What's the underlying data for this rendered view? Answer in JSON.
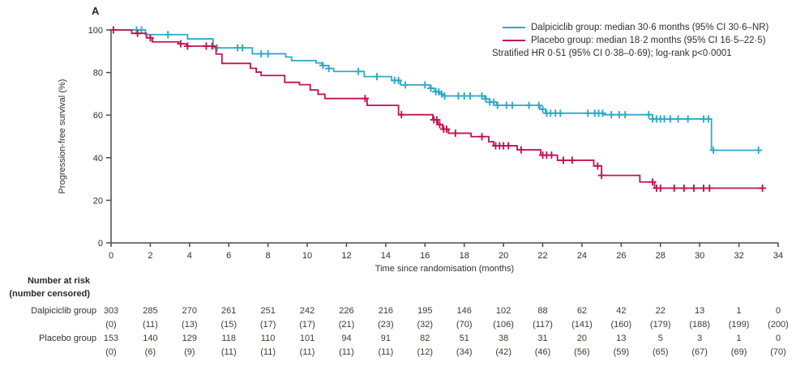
{
  "figure": {
    "panel_label": "A"
  },
  "legend": {
    "entries": [
      {
        "label": "Dalpiciclib group: median 30·6 months (95% CI 30·6–NR)",
        "color": "#2fa9c9"
      },
      {
        "label": "Placebo group: median 18·2 months (95% CI 16·5–22·5)",
        "color": "#c01351"
      }
    ],
    "note": "Stratified HR 0·51 (95% CI 0·38–0·69); log-rank p<0·0001"
  },
  "chart_data": {
    "type": "line",
    "subtype": "kaplan-meier-step",
    "xlabel": "Time since randomisation (months)",
    "ylabel": "Progression-free survival (%)",
    "xlim": [
      0,
      34
    ],
    "ylim": [
      0,
      100
    ],
    "xticks": [
      0,
      2,
      4,
      6,
      8,
      10,
      12,
      14,
      16,
      18,
      20,
      22,
      24,
      26,
      28,
      30,
      32,
      34
    ],
    "yticks": [
      0,
      20,
      40,
      60,
      80,
      100
    ],
    "grid": false,
    "legend_position": "top-right",
    "axis_color": "#4d4b49",
    "series": [
      {
        "name": "Dalpiciclib group",
        "color": "#2fa9c9",
        "end_month": 33.05,
        "steps": [
          [
            0,
            100
          ],
          [
            1.75,
            97.8
          ],
          [
            3.9,
            95.8
          ],
          [
            5.2,
            91.6
          ],
          [
            7.2,
            88.8
          ],
          [
            8.9,
            87.3
          ],
          [
            9.2,
            85.6
          ],
          [
            10.45,
            84.5
          ],
          [
            10.75,
            83.3
          ],
          [
            11.1,
            81.9
          ],
          [
            11.35,
            80.5
          ],
          [
            12.9,
            78.1
          ],
          [
            14.3,
            76.3
          ],
          [
            14.75,
            74.2
          ],
          [
            16.25,
            72.6
          ],
          [
            16.5,
            71.0
          ],
          [
            16.75,
            69.9
          ],
          [
            16.95,
            69.0
          ],
          [
            19.05,
            67.6
          ],
          [
            19.3,
            66.1
          ],
          [
            19.65,
            64.6
          ],
          [
            21.85,
            62.8
          ],
          [
            22.15,
            60.9
          ],
          [
            25.1,
            60.2
          ],
          [
            27.6,
            58.2
          ],
          [
            30.6,
            43.5
          ]
        ],
        "censor_months": [
          1.3,
          1.55,
          2.9,
          5.4,
          6.45,
          6.7,
          7.65,
          8.0,
          10.8,
          11.1,
          12.6,
          13.55,
          14.45,
          14.65,
          15.0,
          16.0,
          16.3,
          16.55,
          16.7,
          16.85,
          17.0,
          17.7,
          18.0,
          18.3,
          18.9,
          19.1,
          19.3,
          19.5,
          19.7,
          20.15,
          20.45,
          21.3,
          21.8,
          22.0,
          22.2,
          22.4,
          22.65,
          22.9,
          24.3,
          24.65,
          24.85,
          25.05,
          25.5,
          25.9,
          26.2,
          27.4,
          27.6,
          27.8,
          28.0,
          28.2,
          28.5,
          28.9,
          29.4,
          30.2,
          30.45,
          30.7,
          33.0
        ]
      },
      {
        "name": "Placebo group",
        "color": "#c01351",
        "end_month": 33.2,
        "steps": [
          [
            0,
            100
          ],
          [
            1.05,
            98.4
          ],
          [
            1.8,
            96.3
          ],
          [
            2.1,
            94.4
          ],
          [
            3.45,
            93.5
          ],
          [
            3.85,
            92.4
          ],
          [
            5.35,
            88.7
          ],
          [
            5.65,
            84.3
          ],
          [
            7.1,
            82.0
          ],
          [
            7.4,
            80.2
          ],
          [
            7.65,
            78.6
          ],
          [
            8.85,
            75.4
          ],
          [
            9.6,
            74.3
          ],
          [
            10.15,
            71.8
          ],
          [
            10.55,
            69.8
          ],
          [
            10.9,
            67.8
          ],
          [
            13.05,
            64.6
          ],
          [
            14.65,
            60.2
          ],
          [
            16.4,
            57.8
          ],
          [
            16.65,
            55.6
          ],
          [
            16.9,
            53.4
          ],
          [
            17.2,
            51.5
          ],
          [
            18.35,
            49.9
          ],
          [
            19.25,
            47.5
          ],
          [
            19.5,
            45.6
          ],
          [
            20.7,
            43.7
          ],
          [
            21.9,
            41.2
          ],
          [
            22.75,
            38.8
          ],
          [
            24.6,
            36.1
          ],
          [
            25.0,
            31.7
          ],
          [
            26.95,
            28.6
          ],
          [
            27.7,
            25.7
          ]
        ],
        "censor_months": [
          0.12,
          1.35,
          2.0,
          3.55,
          3.9,
          4.85,
          5.15,
          12.95,
          14.8,
          16.45,
          16.6,
          16.75,
          16.95,
          17.1,
          17.55,
          18.9,
          19.6,
          19.8,
          20.0,
          20.25,
          20.9,
          22.0,
          22.2,
          22.45,
          23.05,
          23.5,
          24.8,
          25.0,
          27.6,
          27.8,
          28.0,
          28.7,
          29.2,
          29.7,
          30.2,
          30.5,
          33.2
        ]
      }
    ]
  },
  "risk_table": {
    "header_line1": "Number at risk",
    "header_line2": "(number censored)",
    "rows": [
      {
        "label": "Dalpiciclib group",
        "at_risk": [
          303,
          285,
          270,
          261,
          251,
          242,
          226,
          216,
          195,
          146,
          102,
          88,
          62,
          42,
          22,
          13,
          1,
          0
        ],
        "censored": [
          "(0)",
          "(11)",
          "(13)",
          "(15)",
          "(17)",
          "(17)",
          "(21)",
          "(23)",
          "(32)",
          "(70)",
          "(106)",
          "(117)",
          "(141)",
          "(160)",
          "(179)",
          "(188)",
          "(199)",
          "(200)"
        ]
      },
      {
        "label": "Placebo group",
        "at_risk": [
          153,
          140,
          129,
          118,
          110,
          101,
          94,
          91,
          82,
          51,
          38,
          31,
          20,
          13,
          5,
          3,
          1,
          0
        ],
        "censored": [
          "(0)",
          "(6)",
          "(9)",
          "(11)",
          "(11)",
          "(11)",
          "(11)",
          "(11)",
          "(12)",
          "(34)",
          "(42)",
          "(46)",
          "(56)",
          "(59)",
          "(65)",
          "(67)",
          "(69)",
          "(70)"
        ]
      }
    ]
  }
}
